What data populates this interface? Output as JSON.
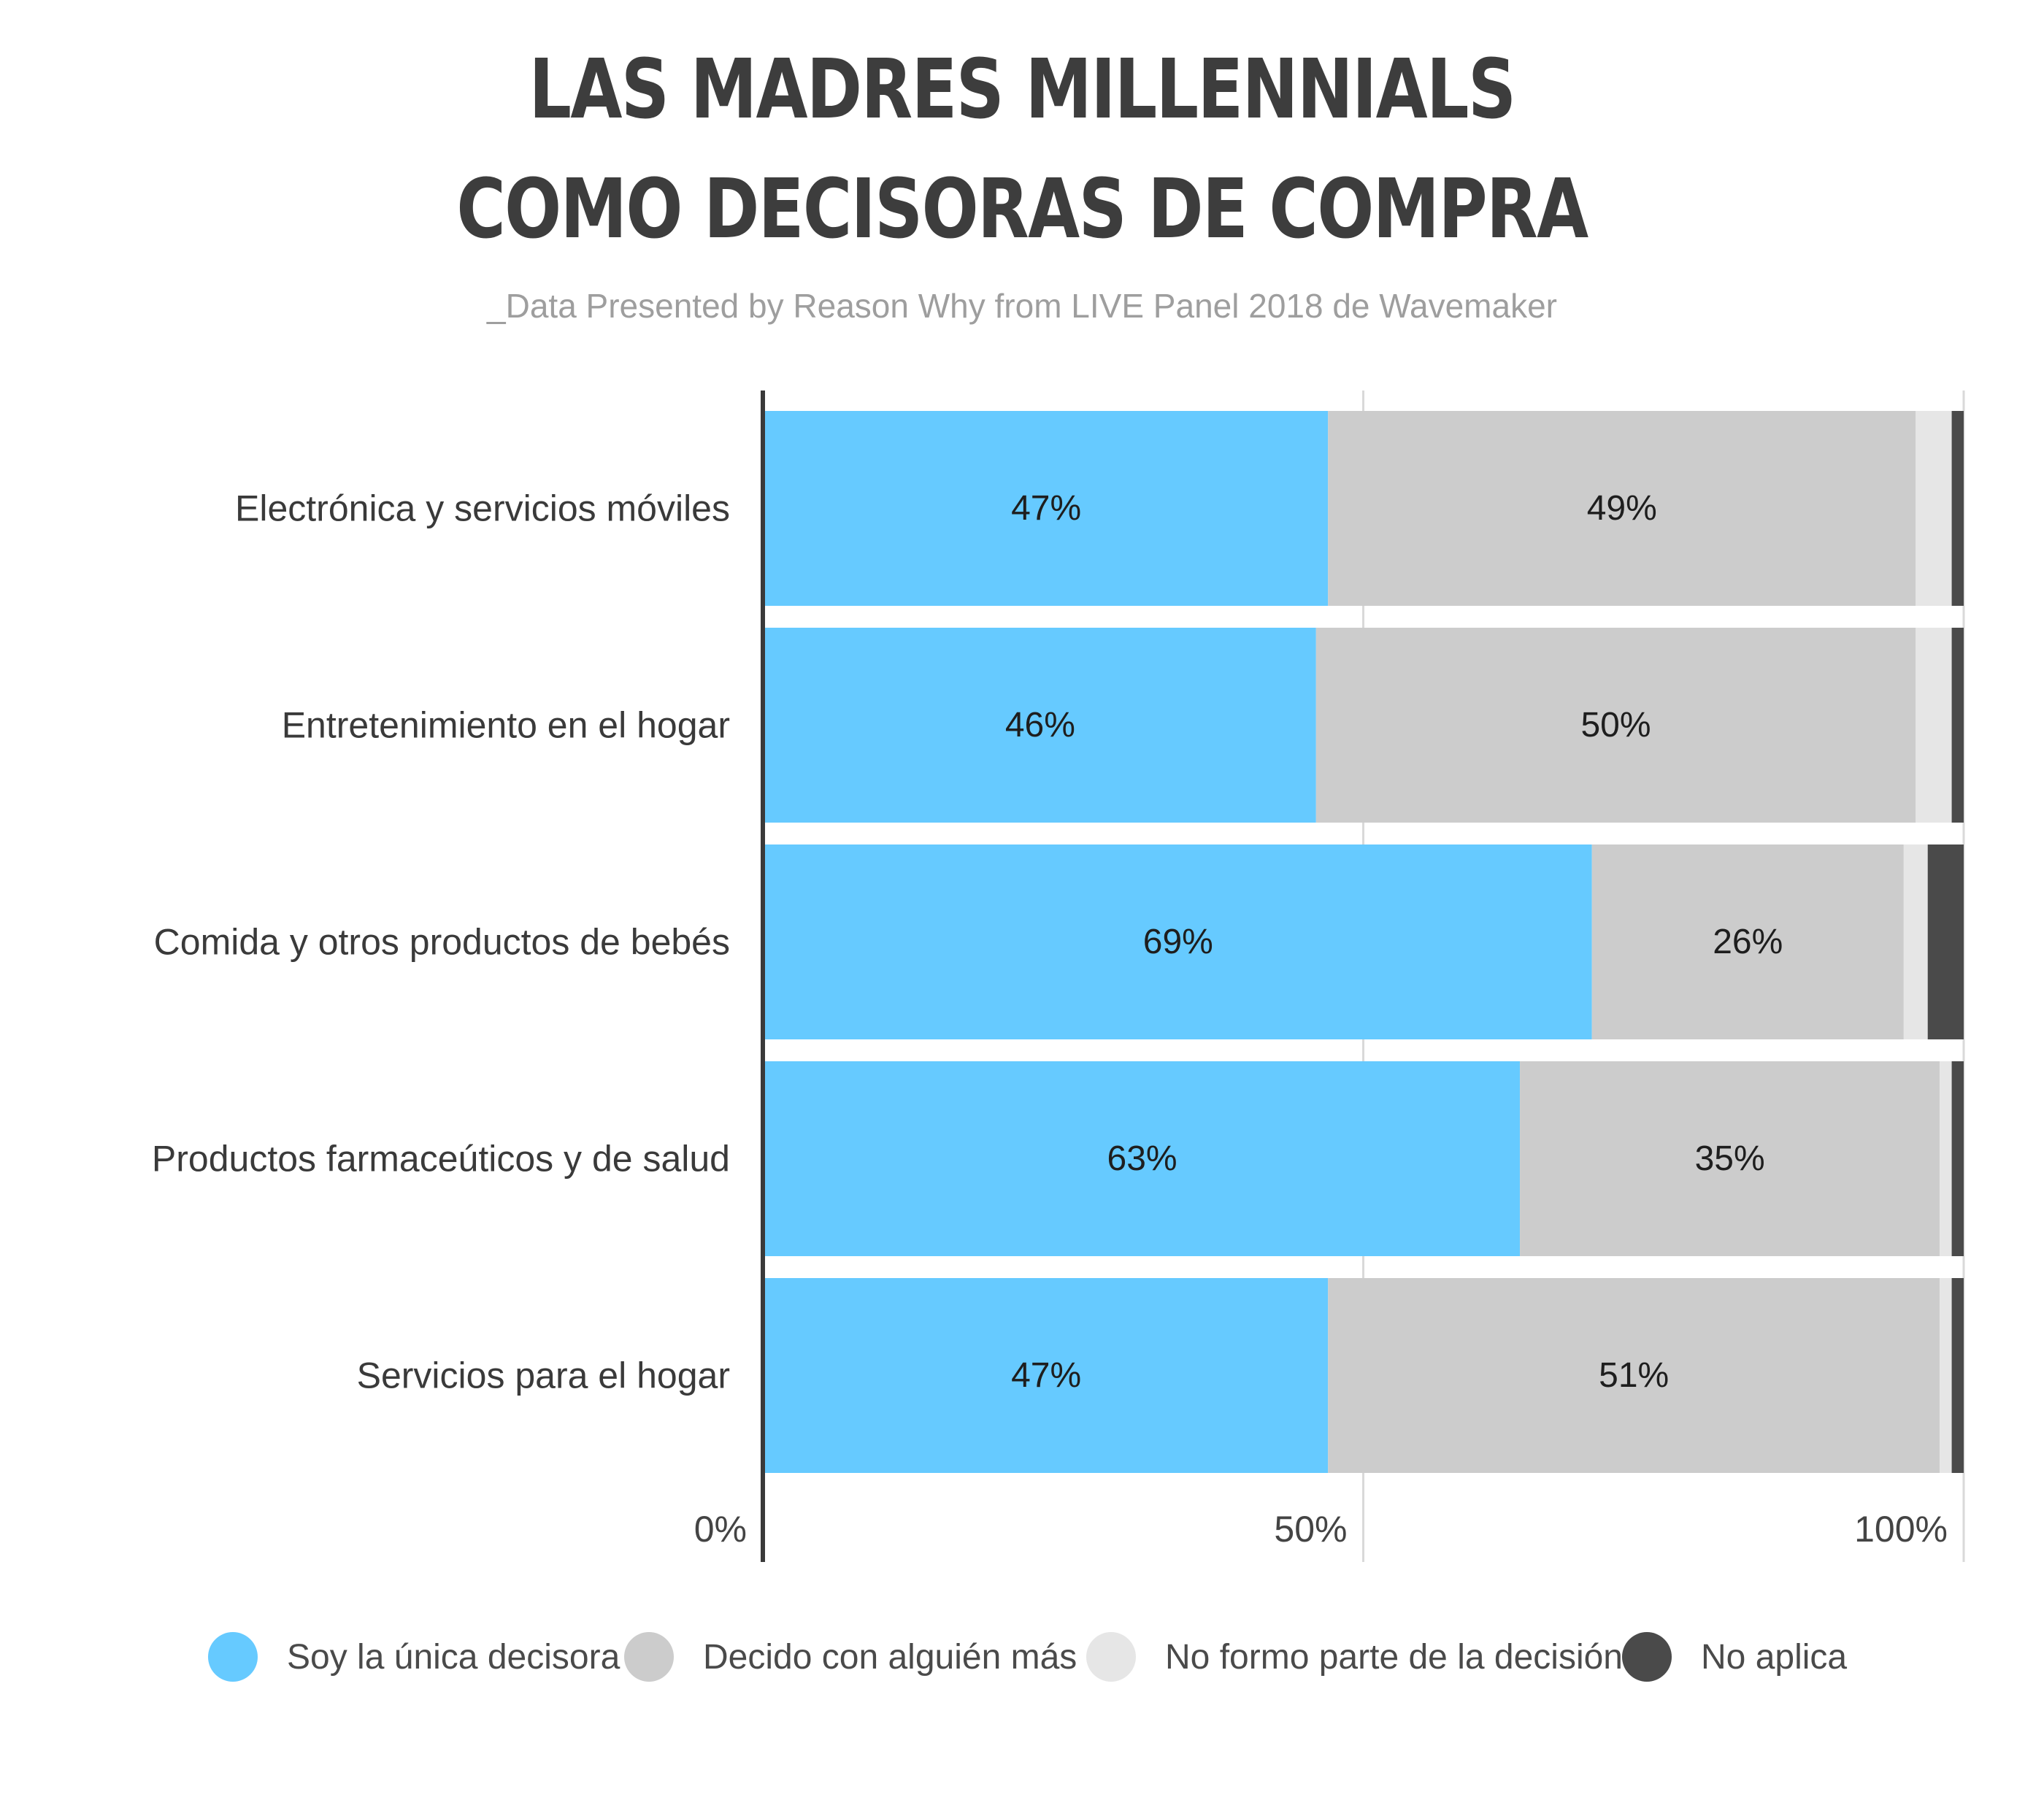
{
  "title_line1": "LAS MADRES MILLENNIALS",
  "title_line2": "COMO DECISORAS DE COMPRA",
  "subtitle": "_Data Presented by Reason Why from LIVE Panel 2018 de Wavemaker",
  "chart_data": {
    "type": "bar",
    "orientation": "horizontal",
    "stacked": true,
    "title": "LAS MADRES MILLENNIALS COMO DECISORAS DE COMPRA",
    "subtitle": "_Data Presented by Reason Why from LIVE Panel 2018 de Wavemaker",
    "categories": [
      "Electrónica y servicios móviles",
      "Entretenimiento en el hogar",
      "Comida y otros productos de bebés",
      "Productos farmaceúticos y de salud",
      "Servicios para el hogar"
    ],
    "series": [
      {
        "name": "Soy la única decisora",
        "color": "#66caff",
        "values": [
          47,
          46,
          69,
          63,
          47
        ],
        "labels": [
          "47%",
          "46%",
          "69%",
          "63%",
          "47%"
        ]
      },
      {
        "name": "Decido con alguién más",
        "color": "#cccccc",
        "values": [
          49,
          50,
          26,
          35,
          51
        ],
        "labels": [
          "49%",
          "50%",
          "26%",
          "35%",
          "51%"
        ]
      },
      {
        "name": "No formo parte de la decisión",
        "color": "#e6e6e6",
        "values": [
          3,
          3,
          2,
          1,
          1
        ]
      },
      {
        "name": "No aplica",
        "color": "#4a4a4a",
        "values": [
          1,
          1,
          3,
          1,
          1
        ]
      }
    ],
    "x_ticks": [
      "0%",
      "50%",
      "100%"
    ],
    "xlim": [
      0,
      100
    ],
    "grid": true,
    "legend_position": "bottom"
  }
}
